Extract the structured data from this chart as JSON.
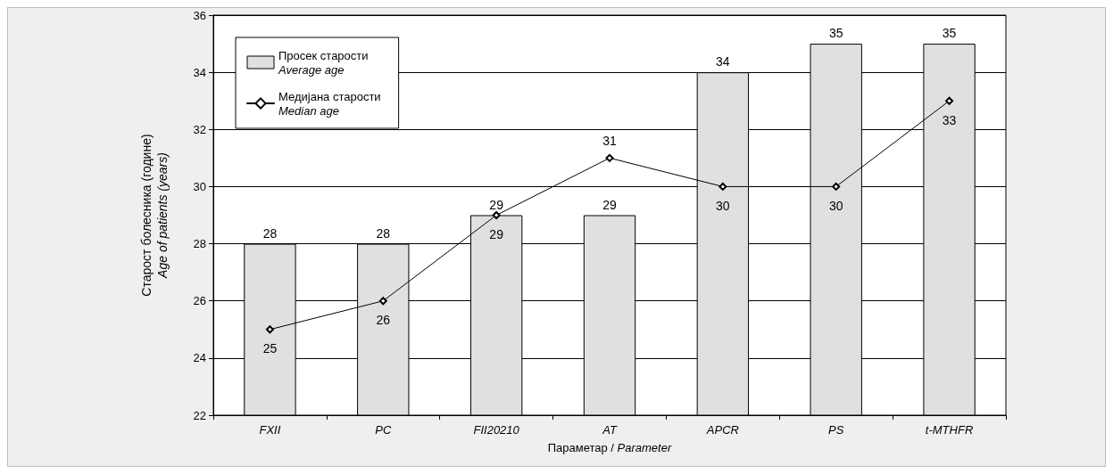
{
  "chart_data": {
    "type": "bar",
    "xlabel": "Параметар / Parameter",
    "ylabel": "Старост болесника (године)\nAge of patients (years)",
    "categories": [
      "FXII",
      "PC",
      "FII20210",
      "AT",
      "APCR",
      "PS",
      "t-MTHFR"
    ],
    "series": [
      {
        "name": "Просек старости\nAverage age",
        "color": "#e0e0e0",
        "values": [
          28,
          28,
          29,
          29,
          34,
          35,
          35
        ]
      },
      {
        "type": "line",
        "name": "Медијана старости\nMedian age",
        "color": "#000000",
        "values": [
          25,
          26,
          29,
          31,
          30,
          30,
          33
        ]
      }
    ],
    "ylim": [
      22,
      36
    ],
    "yticks": [
      22,
      24,
      26,
      28,
      30,
      32,
      34,
      36
    ],
    "grid": "y",
    "legend": "top left",
    "marker": "diamond",
    "line_style": "solid",
    "data_labels": true
  }
}
